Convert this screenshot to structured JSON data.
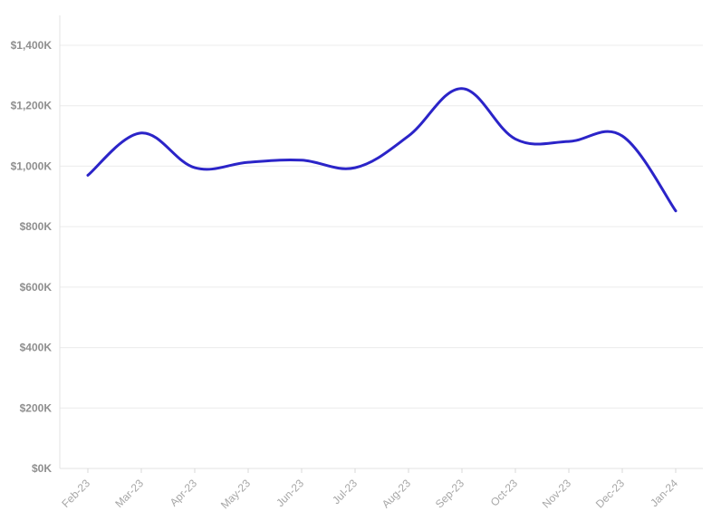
{
  "chart_data": {
    "type": "line",
    "title": "",
    "xlabel": "",
    "ylabel": "",
    "categories": [
      "Feb-23",
      "Mar-23",
      "Apr-23",
      "May-23",
      "Jun-23",
      "Jul-23",
      "Aug-23",
      "Sep-23",
      "Oct-23",
      "Nov-23",
      "Dec-23",
      "Jan-24"
    ],
    "series": [
      {
        "values": [
          970000,
          1110000,
          995000,
          1013000,
          1020000,
          995000,
          1100000,
          1257000,
          1090000,
          1082000,
          1100000,
          852000
        ],
        "color": "#2b24c8"
      }
    ],
    "ylim": [
      0,
      1400000
    ],
    "yticks": [
      0,
      200000,
      400000,
      600000,
      800000,
      1000000,
      1200000,
      1400000
    ],
    "ytick_labels": [
      "$0K",
      "$200K",
      "$400K",
      "$600K",
      "$800K",
      "$1,000K",
      "$1,200K",
      "$1,400K"
    ],
    "grid": true,
    "legend": "none"
  }
}
